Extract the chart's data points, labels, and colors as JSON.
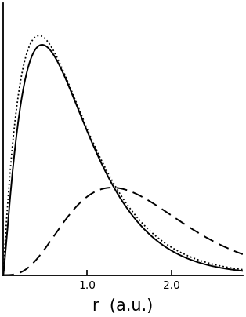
{
  "title": "",
  "xlabel": "r  (a.u.)",
  "xlim": [
    0,
    2.85
  ],
  "ylim": [
    0,
    1.18
  ],
  "background_color": "#ffffff",
  "solid_a": 1.2,
  "solid_b": 2.6,
  "solid_scale": 1.0,
  "dotted_a": 1.0,
  "dotted_b": 2.35,
  "dotted_scale": 1.04,
  "dashed_a": 3.5,
  "dashed_b": 2.7,
  "dashed_scale": 0.38,
  "linewidth_solid": 1.4,
  "linewidth_dotted": 1.3,
  "linewidth_dashed": 1.4,
  "xlabel_fontsize": 15,
  "tick_fontsize": 13
}
